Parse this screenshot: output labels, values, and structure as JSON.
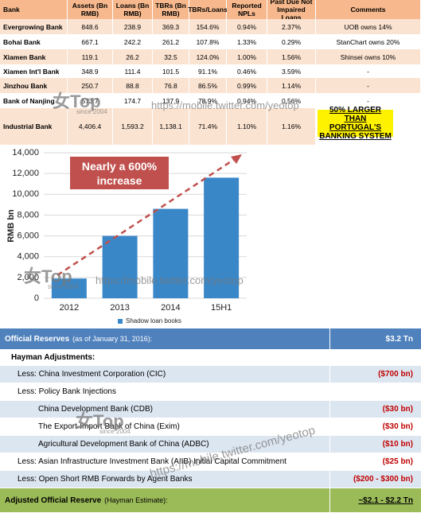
{
  "bank_table": {
    "header": [
      "Bank",
      "Assets (Bn RMB)",
      "Loans (Bn RMB)",
      "TBRs (Bn RMB)",
      "TBRs/Loans",
      "Reported NPLs",
      "Past Due Not Impaired Loans",
      "Comments"
    ],
    "rows": [
      [
        "Evergrowing Bank",
        "848.6",
        "238.9",
        "369.3",
        "154.6%",
        "0.94%",
        "2.37%",
        "UOB owns 14%"
      ],
      [
        "Bohai Bank",
        "667.1",
        "242.2",
        "261.2",
        "107.8%",
        "1.33%",
        "0.29%",
        "StanChart owns 20%"
      ],
      [
        "Xiamen Bank",
        "119.1",
        "26.2",
        "32.5",
        "124.0%",
        "1.00%",
        "1.56%",
        "Shinsei owns 10%"
      ],
      [
        "Xiamen Int'l Bank",
        "348.9",
        "111.4",
        "101.5",
        "91.1%",
        "0.46%",
        "3.59%",
        "-"
      ],
      [
        "Jinzhou Bank",
        "250.7",
        "88.8",
        "76.8",
        "86.5%",
        "0.99%",
        "1.14%",
        "-"
      ],
      [
        "Bank of Nanjing",
        "573.7",
        "174.7",
        "137.9",
        "78.9%",
        "0.94%",
        "0.56%",
        "-"
      ],
      [
        "Industrial Bank",
        "4,406.4",
        "1,593.2",
        "1,138.1",
        "71.4%",
        "1.10%",
        "1.16%",
        "50% LARGER THAN PORTUGAL'S BANKING SYSTEM"
      ]
    ]
  },
  "chart_data": {
    "type": "bar",
    "y_label": "RMB bn",
    "annotation": "Nearly a 600% increase",
    "categories": [
      "2012",
      "2013",
      "2014",
      "15H1"
    ],
    "series": [
      {
        "name": "Shadow loan books",
        "color": "#3a87c8",
        "values": [
          1900,
          6000,
          8600,
          11600
        ]
      }
    ],
    "ylim": [
      0,
      14000
    ],
    "yticks": [
      0,
      {
        "value": 2000,
        "label": "2,000"
      },
      {
        "value": 4000,
        "label": "4,000"
      },
      {
        "value": 6000,
        "label": "6,000"
      },
      {
        "value": 8000,
        "label": "8,000"
      },
      {
        "value": 10000,
        "label": "10,000"
      },
      {
        "value": 12000,
        "label": "12,000"
      },
      {
        "value": 14000,
        "label": "14,000"
      }
    ],
    "grid": true
  },
  "reserves_table": {
    "rows": [
      {
        "label": "Official Reserves",
        "note": "(as of January 31, 2016):",
        "value": "$3.2 Tn"
      },
      {
        "label": "Hayman Adjustments:",
        "value": ""
      },
      {
        "label": "Less: China Investment Corporation (CIC)",
        "value": "($700 bn)"
      },
      {
        "label": "Less: Policy Bank Injections",
        "value": ""
      },
      {
        "label": "China Development Bank (CDB)",
        "value": "($30 bn)"
      },
      {
        "label": "The Export-Import Bank of China (Exim)",
        "value": "($30 bn)"
      },
      {
        "label": "Agricultural Development Bank of China (ADBC)",
        "value": "($10 bn)"
      },
      {
        "label": "Less: Asian Infrastructure Investment Bank (AIIB) Initial Capital Commitment",
        "value": "($25 bn)"
      },
      {
        "label": "Less: Open Short RMB Forwards by Agent Banks",
        "value": "($200 - $300 bn)"
      },
      {
        "label": "Adjusted Official Reserve",
        "note": "(Hayman Estimate):",
        "value": "~$2.1 - $2.2 Tn"
      }
    ]
  },
  "watermark": {
    "logo": "女Top",
    "since": "since 2004",
    "url": "https://mobile.twitter.com/yeotop"
  }
}
